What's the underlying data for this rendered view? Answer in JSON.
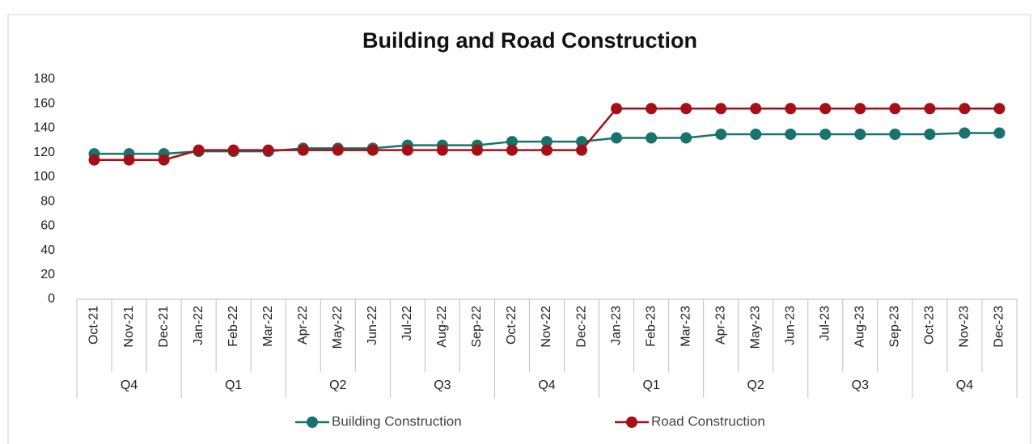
{
  "chart_data": {
    "type": "line",
    "title": "Building and Road Construction",
    "categories": [
      "Oct-21",
      "Nov-21",
      "Dec-21",
      "Jan-22",
      "Feb-22",
      "Mar-22",
      "Apr-22",
      "May-22",
      "Jun-22",
      "Jul-22",
      "Aug-22",
      "Sep-22",
      "Oct-22",
      "Nov-22",
      "Dec-22",
      "Jan-23",
      "Feb-23",
      "Mar-23",
      "Apr-23",
      "May-23",
      "Jun-23",
      "Jul-23",
      "Aug-23",
      "Sep-23",
      "Oct-23",
      "Nov-23",
      "Dec-23"
    ],
    "quarters": [
      "Q4",
      "Q1",
      "Q2",
      "Q3",
      "Q4",
      "Q1",
      "Q2",
      "Q3",
      "Q4"
    ],
    "series": [
      {
        "name": "Building Construction",
        "color": "#17736b",
        "values": [
          119,
          119,
          119,
          121,
          121,
          121,
          123.5,
          123.5,
          123.5,
          126,
          126,
          126,
          129,
          129,
          129,
          132,
          132,
          132,
          135,
          135,
          135,
          135,
          135,
          135,
          135,
          136,
          136
        ]
      },
      {
        "name": "Road Construction",
        "color": "#a50f15",
        "values": [
          114,
          114,
          114,
          122,
          122,
          122,
          122,
          122,
          122,
          122,
          122,
          122,
          122,
          122,
          122,
          156,
          156,
          156,
          156,
          156,
          156,
          156,
          156,
          156,
          156,
          156,
          156
        ]
      }
    ],
    "ylim": [
      0,
      180
    ],
    "yticks": [
      0,
      20,
      40,
      60,
      80,
      100,
      120,
      140,
      160,
      180
    ],
    "grid": false,
    "legend": "bottom"
  }
}
